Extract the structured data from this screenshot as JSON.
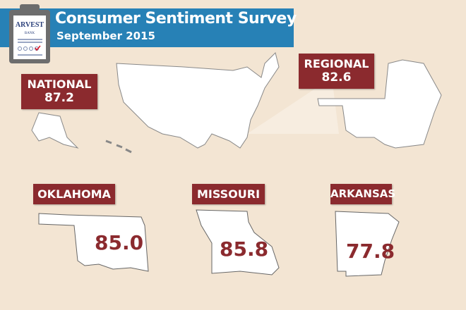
{
  "header": {
    "title": "Consumer Sentiment Survey",
    "subtitle": "September 2015",
    "logo_text": "ARVEST BANK"
  },
  "national": {
    "label": "NATIONAL",
    "value": "87.2"
  },
  "regional": {
    "label": "REGIONAL",
    "value": "82.6"
  },
  "states": [
    {
      "label": "OKLAHOMA",
      "value": "85.0"
    },
    {
      "label": "MISSOURI",
      "value": "85.8"
    },
    {
      "label": "ARKANSAS",
      "value": "77.8"
    }
  ],
  "colors": {
    "accent": "#2781b6",
    "label": "#8b2a2e",
    "background": "#f3e5d3"
  }
}
